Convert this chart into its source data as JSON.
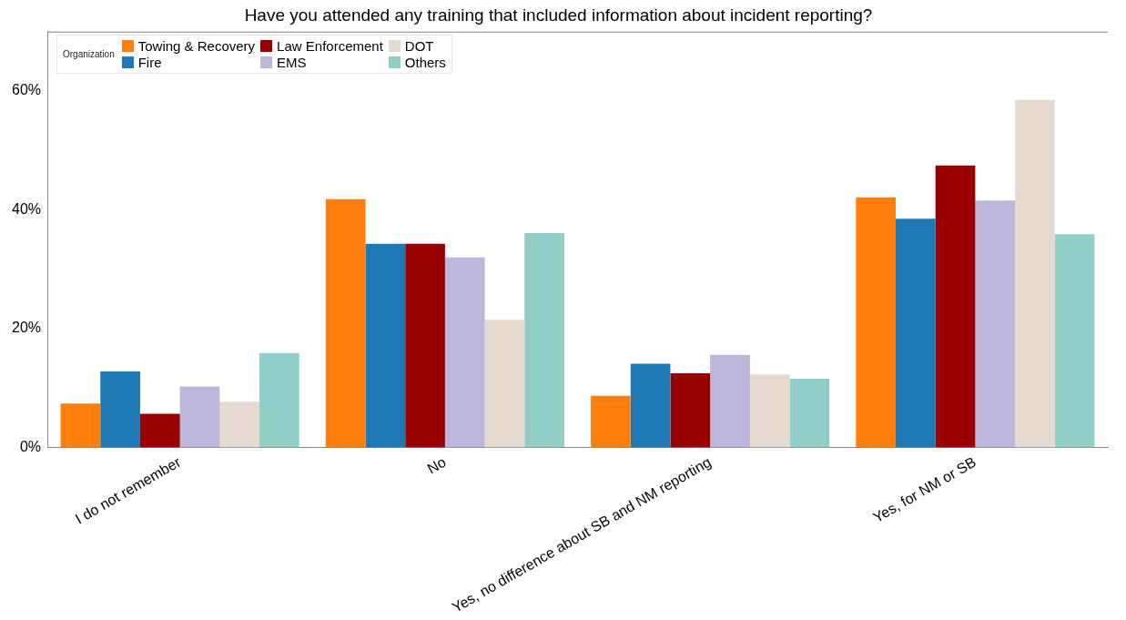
{
  "chart_data": {
    "type": "bar",
    "title": "Have you attended any training that included information about incident reporting?",
    "categories": [
      "I do not remember",
      "No",
      "Yes, no difference about SB and NM reporting",
      "Yes, for NM or SB"
    ],
    "legend_title": "Organization",
    "legend": "top left",
    "grid": false,
    "ylim": [
      0,
      70
    ],
    "yticks": [
      {
        "value": 0,
        "label": "0%"
      },
      {
        "value": 20,
        "label": "20%"
      },
      {
        "value": 40,
        "label": "40%"
      },
      {
        "value": 60,
        "label": "60%"
      }
    ],
    "series": [
      {
        "name": "Towing & Recovery",
        "color": "#ff7f0e",
        "values": [
          7.4,
          41.8,
          8.7,
          42.1
        ]
      },
      {
        "name": "Fire",
        "color": "#1f77b4",
        "values": [
          12.8,
          34.3,
          14.1,
          38.5
        ]
      },
      {
        "name": "Law Enforcement",
        "color": "#990000",
        "values": [
          5.7,
          34.3,
          12.5,
          47.5
        ]
      },
      {
        "name": "EMS",
        "color": "#bcb6da",
        "values": [
          10.3,
          32.0,
          15.6,
          41.6
        ]
      },
      {
        "name": "DOT",
        "color": "#e6d9d0",
        "values": [
          7.7,
          21.5,
          12.3,
          58.5
        ]
      },
      {
        "name": "Others",
        "color": "#91cec8",
        "values": [
          15.9,
          36.1,
          11.6,
          35.9
        ]
      }
    ]
  }
}
